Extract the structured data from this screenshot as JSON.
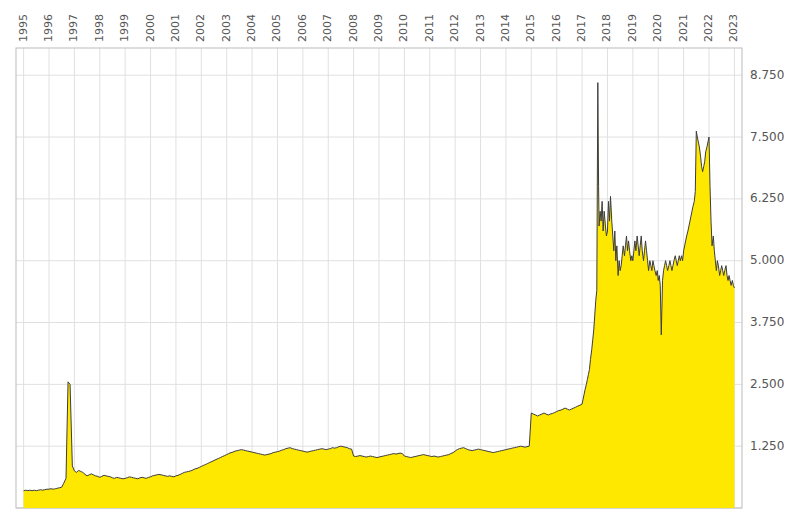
{
  "chart_data": {
    "type": "area",
    "color": "#FFE800",
    "grid": true,
    "xlim": [
      1994.7,
      2023.3
    ],
    "xticks": [
      1995,
      1996,
      1997,
      1998,
      1999,
      2000,
      2001,
      2002,
      2003,
      2004,
      2005,
      2006,
      2007,
      2008,
      2009,
      2010,
      2011,
      2012,
      2013,
      2014,
      2015,
      2016,
      2017,
      2018,
      2019,
      2020,
      2021,
      2022,
      2023
    ],
    "ylim": [
      0,
      9.3
    ],
    "yticks": [
      {
        "value": 0,
        "label": null
      },
      {
        "value": 1.25,
        "label": "1.250"
      },
      {
        "value": 2.5,
        "label": "2.500"
      },
      {
        "value": 3.75,
        "label": "3.750"
      },
      {
        "value": 5.0,
        "label": "5.000"
      },
      {
        "value": 6.25,
        "label": "6.250"
      },
      {
        "value": 7.5,
        "label": "7.500"
      },
      {
        "value": 8.75,
        "label": "8.750"
      }
    ],
    "x": [
      1995.0,
      1995.08,
      1995.17,
      1995.25,
      1995.33,
      1995.42,
      1995.5,
      1995.58,
      1995.67,
      1995.75,
      1995.83,
      1995.92,
      1996.0,
      1996.08,
      1996.17,
      1996.25,
      1996.33,
      1996.42,
      1996.5,
      1996.58,
      1996.67,
      1996.75,
      1996.83,
      1996.92,
      1997.0,
      1997.08,
      1997.17,
      1997.25,
      1997.33,
      1997.42,
      1997.5,
      1997.58,
      1997.67,
      1997.75,
      1997.83,
      1997.92,
      1998.0,
      1998.08,
      1998.17,
      1998.25,
      1998.33,
      1998.42,
      1998.5,
      1998.58,
      1998.67,
      1998.75,
      1998.83,
      1998.92,
      1999.0,
      1999.08,
      1999.17,
      1999.25,
      1999.33,
      1999.42,
      1999.5,
      1999.58,
      1999.67,
      1999.75,
      1999.83,
      1999.92,
      2000.0,
      2000.08,
      2000.17,
      2000.25,
      2000.33,
      2000.42,
      2000.5,
      2000.58,
      2000.67,
      2000.75,
      2000.83,
      2000.92,
      2001.0,
      2001.08,
      2001.17,
      2001.25,
      2001.33,
      2001.42,
      2001.5,
      2001.58,
      2001.67,
      2001.75,
      2001.83,
      2001.92,
      2002.0,
      2002.08,
      2002.17,
      2002.25,
      2002.33,
      2002.42,
      2002.5,
      2002.58,
      2002.67,
      2002.75,
      2002.83,
      2002.92,
      2003.0,
      2003.08,
      2003.17,
      2003.25,
      2003.33,
      2003.42,
      2003.5,
      2003.58,
      2003.67,
      2003.75,
      2003.83,
      2003.92,
      2004.0,
      2004.08,
      2004.17,
      2004.25,
      2004.33,
      2004.42,
      2004.5,
      2004.58,
      2004.67,
      2004.75,
      2004.83,
      2004.92,
      2005.0,
      2005.08,
      2005.17,
      2005.25,
      2005.33,
      2005.42,
      2005.5,
      2005.58,
      2005.67,
      2005.75,
      2005.83,
      2005.92,
      2006.0,
      2006.08,
      2006.17,
      2006.25,
      2006.33,
      2006.42,
      2006.5,
      2006.58,
      2006.67,
      2006.75,
      2006.83,
      2006.92,
      2007.0,
      2007.08,
      2007.17,
      2007.25,
      2007.33,
      2007.42,
      2007.5,
      2007.58,
      2007.67,
      2007.75,
      2007.83,
      2007.92,
      2008.0,
      2008.08,
      2008.17,
      2008.25,
      2008.33,
      2008.42,
      2008.5,
      2008.58,
      2008.67,
      2008.75,
      2008.83,
      2008.92,
      2009.0,
      2009.08,
      2009.17,
      2009.25,
      2009.33,
      2009.42,
      2009.5,
      2009.58,
      2009.67,
      2009.75,
      2009.83,
      2009.92,
      2010.0,
      2010.08,
      2010.17,
      2010.25,
      2010.33,
      2010.42,
      2010.5,
      2010.58,
      2010.67,
      2010.75,
      2010.83,
      2010.92,
      2011.0,
      2011.08,
      2011.17,
      2011.25,
      2011.33,
      2011.42,
      2011.5,
      2011.58,
      2011.67,
      2011.75,
      2011.83,
      2011.92,
      2012.0,
      2012.08,
      2012.17,
      2012.25,
      2012.33,
      2012.42,
      2012.5,
      2012.58,
      2012.67,
      2012.75,
      2012.83,
      2012.92,
      2013.0,
      2013.08,
      2013.17,
      2013.25,
      2013.33,
      2013.42,
      2013.5,
      2013.58,
      2013.67,
      2013.75,
      2013.83,
      2013.92,
      2014.0,
      2014.08,
      2014.17,
      2014.25,
      2014.33,
      2014.42,
      2014.5,
      2014.58,
      2014.67,
      2014.75,
      2014.83,
      2014.92,
      2015.0,
      2015.08,
      2015.17,
      2015.25,
      2015.33,
      2015.42,
      2015.5,
      2015.58,
      2015.67,
      2015.75,
      2015.83,
      2015.92,
      2016.0,
      2016.08,
      2016.17,
      2016.25,
      2016.33,
      2016.42,
      2016.5,
      2016.58,
      2016.67,
      2016.75,
      2016.83,
      2016.92,
      2017.0,
      2017.04,
      2017.08,
      2017.12,
      2017.17,
      2017.21,
      2017.25,
      2017.29,
      2017.33,
      2017.38,
      2017.42,
      2017.46,
      2017.5,
      2017.54,
      2017.58,
      2017.62,
      2017.65,
      2017.67,
      2017.71,
      2017.75,
      2017.79,
      2017.83,
      2017.87,
      2017.92,
      2017.96,
      2018.0,
      2018.04,
      2018.08,
      2018.12,
      2018.17,
      2018.21,
      2018.25,
      2018.29,
      2018.33,
      2018.37,
      2018.42,
      2018.46,
      2018.5,
      2018.54,
      2018.58,
      2018.62,
      2018.67,
      2018.71,
      2018.75,
      2018.79,
      2018.83,
      2018.87,
      2018.92,
      2018.96,
      2019.0,
      2019.04,
      2019.08,
      2019.12,
      2019.17,
      2019.21,
      2019.25,
      2019.29,
      2019.33,
      2019.37,
      2019.42,
      2019.46,
      2019.5,
      2019.54,
      2019.58,
      2019.62,
      2019.67,
      2019.71,
      2019.75,
      2019.79,
      2019.83,
      2019.87,
      2019.92,
      2019.96,
      2020.0,
      2020.04,
      2020.08,
      2020.12,
      2020.17,
      2020.21,
      2020.25,
      2020.29,
      2020.33,
      2020.37,
      2020.42,
      2020.46,
      2020.5,
      2020.54,
      2020.58,
      2020.62,
      2020.67,
      2020.71,
      2020.75,
      2020.79,
      2020.83,
      2020.87,
      2020.92,
      2020.96,
      2021.0,
      2021.04,
      2021.08,
      2021.12,
      2021.17,
      2021.21,
      2021.25,
      2021.29,
      2021.33,
      2021.37,
      2021.42,
      2021.46,
      2021.5,
      2021.54,
      2021.58,
      2021.62,
      2021.67,
      2021.71,
      2021.75,
      2021.79,
      2021.83,
      2021.87,
      2021.92,
      2021.96,
      2022.0,
      2022.04,
      2022.08,
      2022.12,
      2022.17,
      2022.21,
      2022.25,
      2022.29,
      2022.33,
      2022.37,
      2022.42,
      2022.46,
      2022.5,
      2022.54,
      2022.58,
      2022.62,
      2022.67,
      2022.71,
      2022.75,
      2022.79,
      2022.83,
      2022.87,
      2022.92,
      2022.96,
      2023.0
    ],
    "values": [
      0.35,
      0.36,
      0.35,
      0.36,
      0.35,
      0.36,
      0.35,
      0.36,
      0.37,
      0.36,
      0.37,
      0.38,
      0.38,
      0.39,
      0.38,
      0.39,
      0.4,
      0.41,
      0.42,
      0.5,
      0.6,
      2.55,
      2.5,
      0.85,
      0.75,
      0.72,
      0.76,
      0.74,
      0.72,
      0.68,
      0.65,
      0.67,
      0.69,
      0.67,
      0.65,
      0.64,
      0.62,
      0.64,
      0.66,
      0.65,
      0.64,
      0.63,
      0.61,
      0.6,
      0.62,
      0.61,
      0.6,
      0.59,
      0.6,
      0.61,
      0.63,
      0.62,
      0.61,
      0.6,
      0.59,
      0.61,
      0.62,
      0.61,
      0.6,
      0.62,
      0.63,
      0.65,
      0.66,
      0.67,
      0.68,
      0.67,
      0.66,
      0.65,
      0.64,
      0.65,
      0.64,
      0.63,
      0.65,
      0.66,
      0.68,
      0.7,
      0.72,
      0.73,
      0.74,
      0.75,
      0.77,
      0.79,
      0.8,
      0.82,
      0.84,
      0.86,
      0.88,
      0.9,
      0.92,
      0.94,
      0.96,
      0.98,
      1.0,
      1.02,
      1.04,
      1.06,
      1.08,
      1.1,
      1.12,
      1.13,
      1.15,
      1.16,
      1.17,
      1.18,
      1.17,
      1.16,
      1.15,
      1.14,
      1.13,
      1.12,
      1.11,
      1.1,
      1.09,
      1.08,
      1.07,
      1.08,
      1.09,
      1.1,
      1.12,
      1.13,
      1.14,
      1.15,
      1.17,
      1.18,
      1.2,
      1.21,
      1.22,
      1.2,
      1.19,
      1.18,
      1.17,
      1.16,
      1.15,
      1.14,
      1.13,
      1.14,
      1.15,
      1.16,
      1.17,
      1.18,
      1.19,
      1.2,
      1.19,
      1.18,
      1.19,
      1.2,
      1.22,
      1.21,
      1.22,
      1.24,
      1.25,
      1.24,
      1.23,
      1.22,
      1.2,
      1.19,
      1.05,
      1.04,
      1.05,
      1.06,
      1.05,
      1.04,
      1.03,
      1.04,
      1.05,
      1.04,
      1.03,
      1.02,
      1.03,
      1.04,
      1.05,
      1.06,
      1.07,
      1.08,
      1.09,
      1.1,
      1.09,
      1.1,
      1.11,
      1.1,
      1.05,
      1.04,
      1.03,
      1.02,
      1.03,
      1.04,
      1.05,
      1.06,
      1.07,
      1.08,
      1.07,
      1.06,
      1.05,
      1.04,
      1.05,
      1.04,
      1.03,
      1.04,
      1.05,
      1.06,
      1.07,
      1.08,
      1.1,
      1.12,
      1.15,
      1.18,
      1.2,
      1.21,
      1.22,
      1.2,
      1.18,
      1.17,
      1.16,
      1.17,
      1.18,
      1.19,
      1.18,
      1.17,
      1.16,
      1.15,
      1.14,
      1.13,
      1.12,
      1.13,
      1.14,
      1.15,
      1.16,
      1.17,
      1.18,
      1.19,
      1.2,
      1.21,
      1.22,
      1.23,
      1.24,
      1.25,
      1.24,
      1.23,
      1.24,
      1.25,
      1.92,
      1.9,
      1.88,
      1.86,
      1.88,
      1.9,
      1.92,
      1.9,
      1.88,
      1.9,
      1.91,
      1.93,
      1.95,
      1.97,
      1.98,
      2.0,
      2.02,
      2.0,
      1.98,
      2.0,
      2.02,
      2.04,
      2.06,
      2.08,
      2.1,
      2.2,
      2.3,
      2.4,
      2.5,
      2.6,
      2.7,
      2.8,
      3.0,
      3.2,
      3.4,
      3.6,
      3.9,
      4.2,
      4.4,
      8.6,
      6.5,
      5.7,
      6.0,
      5.8,
      6.2,
      5.6,
      6.0,
      5.7,
      5.5,
      5.6,
      6.2,
      5.8,
      6.3,
      5.8,
      5.5,
      5.2,
      5.6,
      5.0,
      5.3,
      4.7,
      5.0,
      4.8,
      4.9,
      5.1,
      5.3,
      5.1,
      5.3,
      5.5,
      5.2,
      5.4,
      5.2,
      5.0,
      5.1,
      5.0,
      5.2,
      5.4,
      5.2,
      5.5,
      5.3,
      5.1,
      5.3,
      5.5,
      5.2,
      5.0,
      5.2,
      5.4,
      5.2,
      5.0,
      4.8,
      5.0,
      4.9,
      4.8,
      5.0,
      4.9,
      4.8,
      4.7,
      4.8,
      4.6,
      4.7,
      4.5,
      3.5,
      4.6,
      4.8,
      4.9,
      5.0,
      4.9,
      4.8,
      4.9,
      5.0,
      4.9,
      4.8,
      4.9,
      5.0,
      5.1,
      5.0,
      4.9,
      5.0,
      5.1,
      5.0,
      5.1,
      5.0,
      5.2,
      5.3,
      5.4,
      5.5,
      5.6,
      5.7,
      5.8,
      5.9,
      6.0,
      6.1,
      6.2,
      6.4,
      7.62,
      7.5,
      7.4,
      7.3,
      7.1,
      6.9,
      6.8,
      6.9,
      7.0,
      7.2,
      7.3,
      7.4,
      7.5,
      6.5,
      5.8,
      5.3,
      5.5,
      5.2,
      5.0,
      4.8,
      5.0,
      4.9,
      4.7,
      4.8,
      4.9,
      4.8,
      4.7,
      4.8,
      4.9,
      4.7,
      4.6,
      4.7,
      4.6,
      4.5,
      4.6,
      4.5,
      4.45
    ]
  }
}
